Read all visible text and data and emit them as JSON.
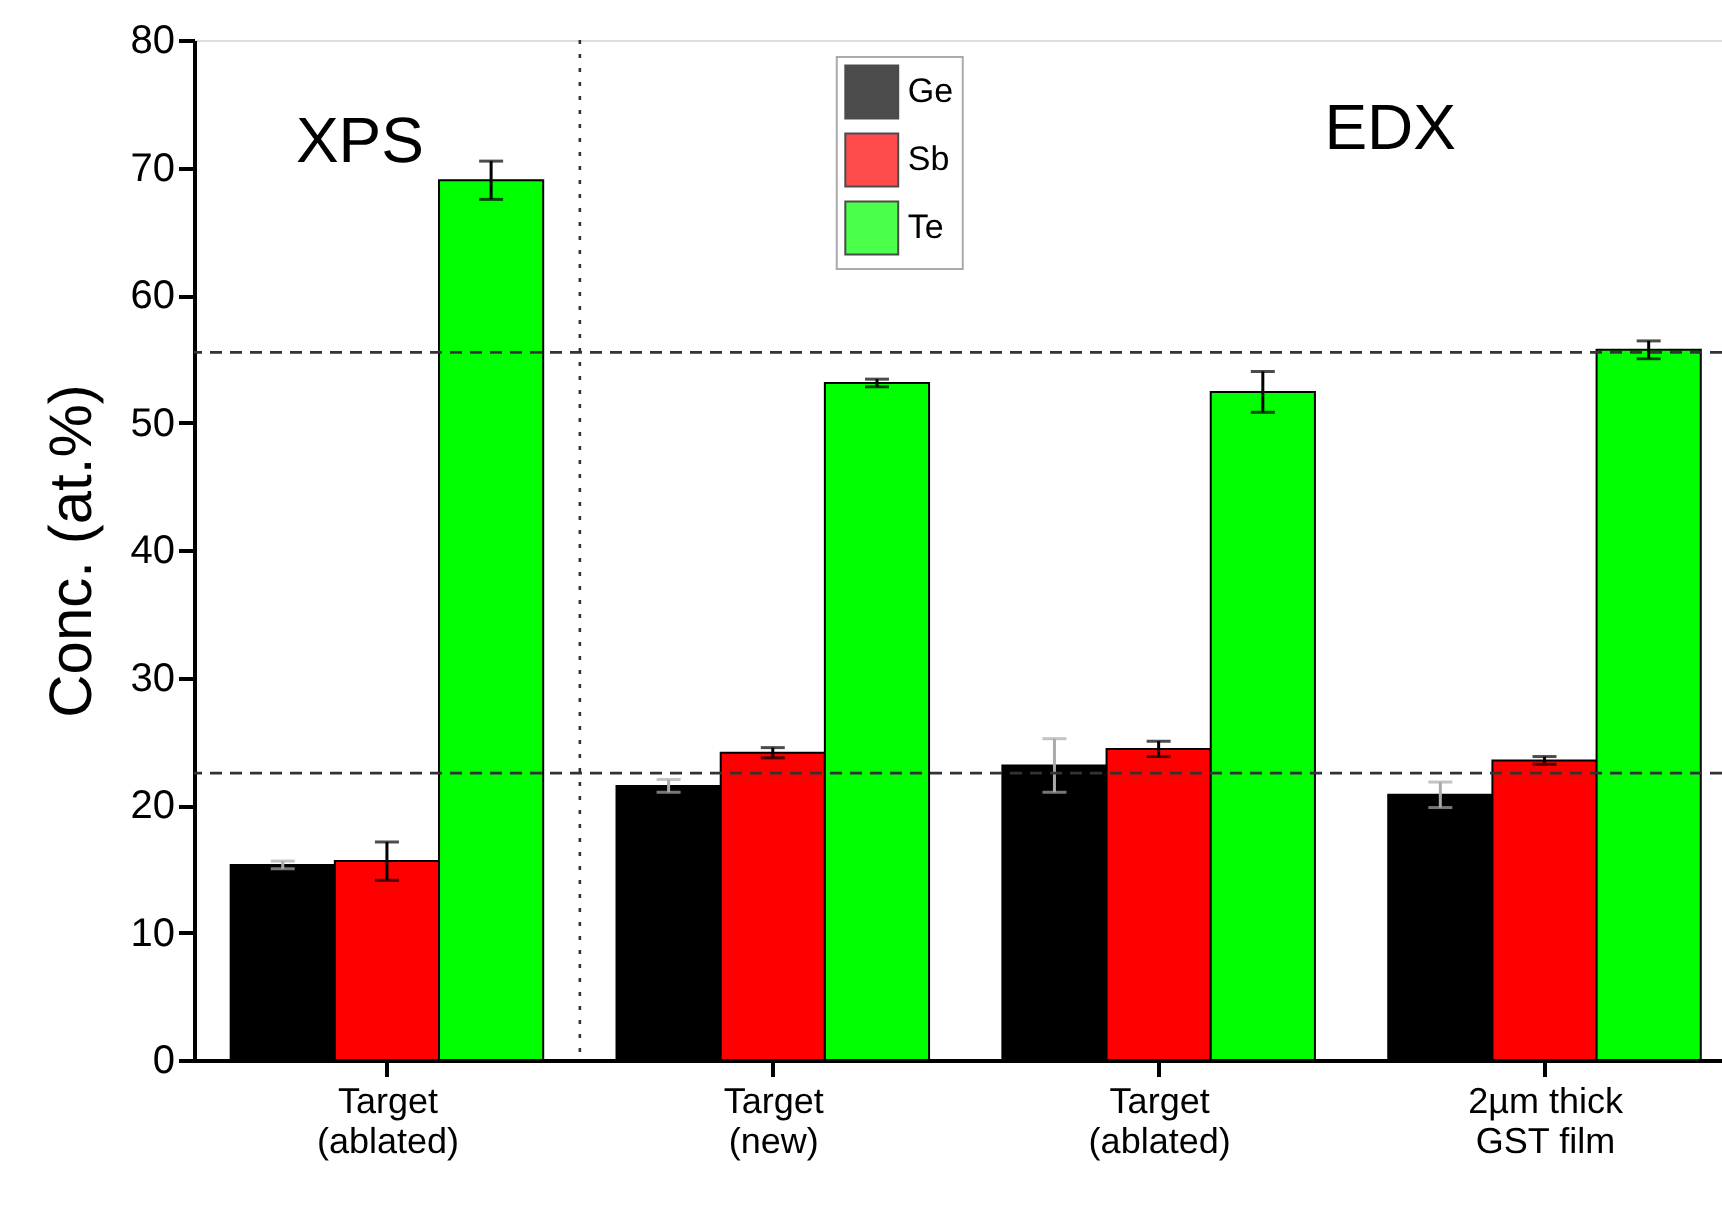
{
  "chart_data": {
    "type": "bar",
    "categories": [
      "Target\n(ablated)",
      "Target\n(new)",
      "Target\n(ablated)",
      "2µm thick\nGST film"
    ],
    "series": [
      {
        "name": "Ge",
        "color": "#000000",
        "values": [
          15.3,
          21.5,
          23.1,
          20.8
        ],
        "errors": [
          0.3,
          0.5,
          2.1,
          1.0
        ]
      },
      {
        "name": "Sb",
        "color": "#ff0000",
        "values": [
          15.6,
          24.1,
          24.4,
          23.5
        ],
        "errors": [
          1.5,
          0.4,
          0.6,
          0.3
        ]
      },
      {
        "name": "Te",
        "color": "#00ff00",
        "values": [
          69.0,
          53.1,
          52.4,
          55.7
        ],
        "errors": [
          1.5,
          0.3,
          1.6,
          0.7
        ]
      }
    ],
    "ylabel": "Conc. (at.%)",
    "ylim": [
      0,
      80
    ],
    "yticks": [
      0,
      10,
      20,
      30,
      40,
      50,
      60,
      70,
      80
    ],
    "ref_lines": [
      {
        "axis": "y",
        "value": 55.5,
        "line_style": "dashed"
      },
      {
        "axis": "y",
        "value": 22.5,
        "line_style": "dashed"
      }
    ],
    "annotations": [
      "XPS",
      "EDX"
    ],
    "legend": "top",
    "grid": false
  }
}
